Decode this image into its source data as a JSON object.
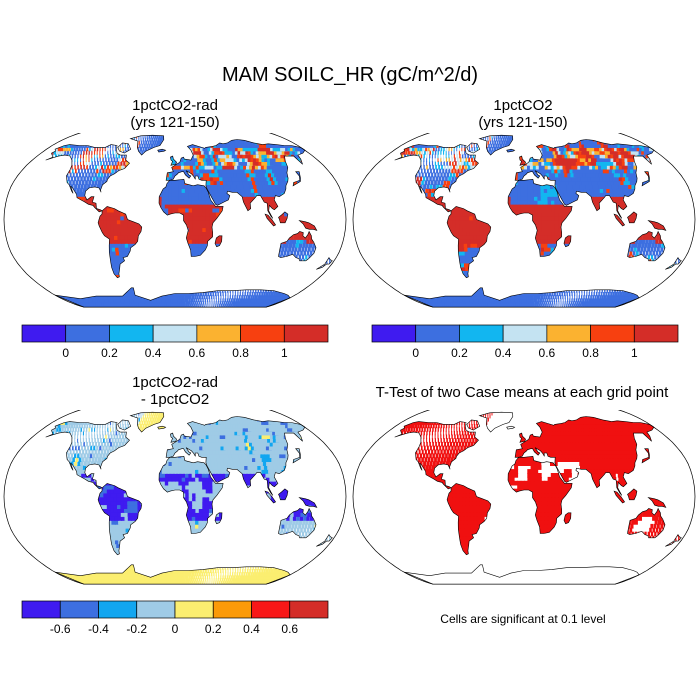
{
  "title": "MAM SOILC_HR (gC/m^2/d)",
  "panels": [
    {
      "title_line1": "1pctCO2-rad",
      "title_line2": "(yrs 121-150)"
    },
    {
      "title_line1": "1pctCO2",
      "title_line2": "(yrs 121-150)"
    },
    {
      "title_line1": "1pctCO2-rad",
      "title_line2": "- 1pctCO2"
    },
    {
      "title_line1": "T-Test of two Case means at each grid point",
      "title_line2": ""
    }
  ],
  "note": "Cells are significant at 0.1 level",
  "colorbars": {
    "absolute": {
      "colors": [
        "#3f1bf0",
        "#3d6fe0",
        "#12b6f0",
        "#c4e3f2",
        "#fbb230",
        "#f74010",
        "#d42d28"
      ],
      "labels": [
        "0",
        "0.2",
        "0.4",
        "0.6",
        "0.8",
        "1"
      ]
    },
    "difference": {
      "colors": [
        "#3f1bf0",
        "#3d6fe0",
        "#12a6f0",
        "#9fcbe6",
        "#fbee70",
        "#fb9a08",
        "#f81818",
        "#d42d28"
      ],
      "labels": [
        "-0.6",
        "-0.4",
        "-0.2",
        "0",
        "0.2",
        "0.4",
        "0.6"
      ]
    }
  },
  "map_colors": {
    "ocean": "#ffffff",
    "outline": "#000000",
    "significant": "#f01010"
  }
}
